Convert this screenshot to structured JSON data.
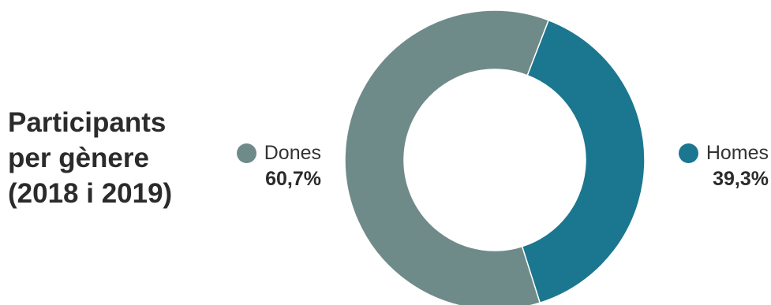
{
  "chart_data": {
    "type": "pie",
    "title_lines": [
      "Participants",
      "per gènere",
      "(2018 i 2019)"
    ],
    "slices": [
      {
        "label": "Homes",
        "value": 39.3,
        "value_label": "39,3%",
        "color": "#1b778f"
      },
      {
        "label": "Dones",
        "value": 60.7,
        "value_label": "60,7%",
        "color": "#6f8b89"
      }
    ],
    "style": "donut"
  }
}
